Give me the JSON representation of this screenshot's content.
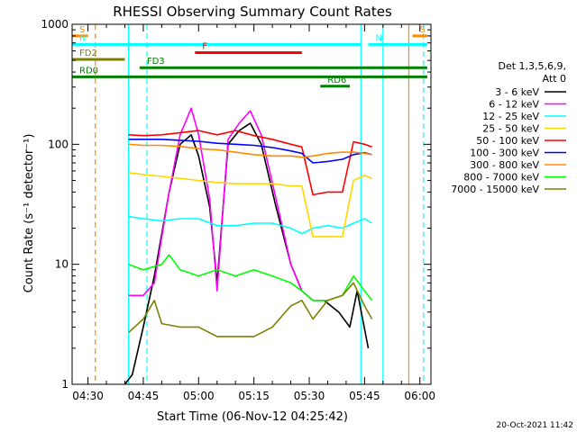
{
  "chart_data": {
    "type": "line",
    "title": "RHESSI Observing Summary Count Rates",
    "xlabel": "Start Time (06-Nov-12 04:25:42)",
    "ylabel": "Count Rate (s⁻¹ detector⁻¹)",
    "yscale": "log",
    "ylim": [
      1,
      1000
    ],
    "xlim": [
      "04:25:42",
      "06:03:00"
    ],
    "x_ticks": [
      "04:30",
      "04:45",
      "05:00",
      "05:15",
      "05:30",
      "05:45",
      "06:00"
    ],
    "y_ticks": [
      "1",
      "10",
      "100",
      "1000"
    ],
    "legend_header": [
      "Det 1,3,5,6,9,",
      "Att 0"
    ],
    "legend_position": "right",
    "series": [
      {
        "name": "3 - 6 keV",
        "color": "#000000",
        "points": [
          [
            "04:40",
            1
          ],
          [
            "04:42",
            1.2
          ],
          [
            "04:45",
            3
          ],
          [
            "04:48",
            8
          ],
          [
            "04:52",
            40
          ],
          [
            "04:55",
            100
          ],
          [
            "04:58",
            120
          ],
          [
            "05:00",
            80
          ],
          [
            "05:03",
            30
          ],
          [
            "05:05",
            7
          ],
          [
            "05:08",
            100
          ],
          [
            "05:11",
            130
          ],
          [
            "05:14",
            150
          ],
          [
            "05:17",
            100
          ],
          [
            "05:21",
            30
          ],
          [
            "05:25",
            10
          ],
          [
            "05:28",
            6
          ],
          [
            "05:31",
            5
          ],
          [
            "05:34",
            5
          ],
          [
            "05:38",
            4
          ],
          [
            "05:41",
            3
          ],
          [
            "05:43",
            6
          ],
          [
            "05:46",
            2
          ]
        ]
      },
      {
        "name": "6 - 12 keV",
        "color": "#ff00ff",
        "points": [
          [
            "04:41",
            5.5
          ],
          [
            "04:45",
            5.5
          ],
          [
            "04:48",
            7
          ],
          [
            "04:52",
            40
          ],
          [
            "04:55",
            120
          ],
          [
            "04:58",
            200
          ],
          [
            "05:00",
            120
          ],
          [
            "05:03",
            35
          ],
          [
            "05:05",
            6
          ],
          [
            "05:08",
            110
          ],
          [
            "05:11",
            150
          ],
          [
            "05:14",
            190
          ],
          [
            "05:17",
            120
          ],
          [
            "05:21",
            35
          ],
          [
            "05:25",
            10
          ],
          [
            "05:28",
            6
          ]
        ]
      },
      {
        "name": "12 - 25 keV",
        "color": "#00ffff",
        "points": [
          [
            "04:41",
            25
          ],
          [
            "04:45",
            24
          ],
          [
            "04:50",
            23
          ],
          [
            "04:55",
            24
          ],
          [
            "05:00",
            24
          ],
          [
            "05:05",
            21
          ],
          [
            "05:10",
            21
          ],
          [
            "05:15",
            22
          ],
          [
            "05:20",
            22
          ],
          [
            "05:25",
            20
          ],
          [
            "05:28",
            18
          ],
          [
            "05:31",
            20
          ],
          [
            "05:35",
            21
          ],
          [
            "05:39",
            20
          ],
          [
            "05:42",
            22
          ],
          [
            "05:45",
            24
          ],
          [
            "05:47",
            22
          ]
        ]
      },
      {
        "name": "25 - 50 keV",
        "color": "#ffd700",
        "points": [
          [
            "04:41",
            58
          ],
          [
            "04:45",
            56
          ],
          [
            "04:50",
            54
          ],
          [
            "04:55",
            52
          ],
          [
            "05:00",
            50
          ],
          [
            "05:05",
            48
          ],
          [
            "05:10",
            47
          ],
          [
            "05:15",
            47
          ],
          [
            "05:20",
            47
          ],
          [
            "05:25",
            45
          ],
          [
            "05:28",
            45
          ],
          [
            "05:31",
            17
          ],
          [
            "05:35",
            17
          ],
          [
            "05:39",
            17
          ],
          [
            "05:42",
            50
          ],
          [
            "05:45",
            55
          ],
          [
            "05:47",
            52
          ]
        ]
      },
      {
        "name": "50 - 100 keV",
        "color": "#ff0000",
        "points": [
          [
            "04:41",
            120
          ],
          [
            "04:45",
            118
          ],
          [
            "04:50",
            120
          ],
          [
            "04:55",
            125
          ],
          [
            "05:00",
            130
          ],
          [
            "05:05",
            120
          ],
          [
            "05:10",
            130
          ],
          [
            "05:15",
            118
          ],
          [
            "05:20",
            110
          ],
          [
            "05:25",
            100
          ],
          [
            "05:28",
            95
          ],
          [
            "05:31",
            38
          ],
          [
            "05:35",
            40
          ],
          [
            "05:39",
            40
          ],
          [
            "05:42",
            105
          ],
          [
            "05:45",
            100
          ],
          [
            "05:47",
            95
          ]
        ]
      },
      {
        "name": "100 - 300 keV",
        "color": "#0000ff",
        "points": [
          [
            "04:41",
            110
          ],
          [
            "04:45",
            110
          ],
          [
            "04:50",
            110
          ],
          [
            "04:55",
            108
          ],
          [
            "05:00",
            106
          ],
          [
            "05:05",
            102
          ],
          [
            "05:10",
            100
          ],
          [
            "05:15",
            98
          ],
          [
            "05:20",
            94
          ],
          [
            "05:25",
            88
          ],
          [
            "05:28",
            84
          ],
          [
            "05:31",
            70
          ],
          [
            "05:35",
            72
          ],
          [
            "05:39",
            75
          ],
          [
            "05:42",
            82
          ],
          [
            "05:45",
            85
          ],
          [
            "05:47",
            82
          ]
        ]
      },
      {
        "name": "300 - 800 keV",
        "color": "#ff8c00",
        "points": [
          [
            "04:41",
            100
          ],
          [
            "04:45",
            98
          ],
          [
            "04:50",
            98
          ],
          [
            "04:55",
            96
          ],
          [
            "05:00",
            92
          ],
          [
            "05:05",
            90
          ],
          [
            "05:10",
            86
          ],
          [
            "05:15",
            82
          ],
          [
            "05:20",
            80
          ],
          [
            "05:25",
            80
          ],
          [
            "05:28",
            78
          ],
          [
            "05:31",
            80
          ],
          [
            "05:35",
            84
          ],
          [
            "05:39",
            86
          ],
          [
            "05:42",
            86
          ],
          [
            "05:45",
            84
          ],
          [
            "05:47",
            82
          ]
        ]
      },
      {
        "name": "800 - 7000 keV",
        "color": "#00ff00",
        "points": [
          [
            "04:41",
            10
          ],
          [
            "04:45",
            9
          ],
          [
            "04:50",
            10
          ],
          [
            "04:52",
            12
          ],
          [
            "04:55",
            9
          ],
          [
            "05:00",
            8
          ],
          [
            "05:05",
            9
          ],
          [
            "05:10",
            8
          ],
          [
            "05:15",
            9
          ],
          [
            "05:20",
            8
          ],
          [
            "05:25",
            7
          ],
          [
            "05:28",
            6
          ],
          [
            "05:31",
            5
          ],
          [
            "05:35",
            5
          ],
          [
            "05:39",
            5.5
          ],
          [
            "05:42",
            8
          ],
          [
            "05:45",
            6
          ],
          [
            "05:47",
            5
          ]
        ]
      },
      {
        "name": "7000 - 15000 keV",
        "color": "#808000",
        "points": [
          [
            "04:41",
            2.7
          ],
          [
            "04:45",
            3.5
          ],
          [
            "04:48",
            5
          ],
          [
            "04:50",
            3.2
          ],
          [
            "04:55",
            3
          ],
          [
            "05:00",
            3
          ],
          [
            "05:05",
            2.5
          ],
          [
            "05:10",
            2.5
          ],
          [
            "05:15",
            2.5
          ],
          [
            "05:20",
            3
          ],
          [
            "05:25",
            4.5
          ],
          [
            "05:28",
            5
          ],
          [
            "05:31",
            3.5
          ],
          [
            "05:35",
            5
          ],
          [
            "05:39",
            5.5
          ],
          [
            "05:42",
            7
          ],
          [
            "05:45",
            4.5
          ],
          [
            "05:47",
            3.5
          ]
        ]
      }
    ],
    "intervals": [
      {
        "label": "S",
        "color": "#ff8c00",
        "start": "04:25:42",
        "end": "04:30",
        "y": 800
      },
      {
        "label": "S",
        "color": "#ff8c00",
        "start": "05:58",
        "end": "06:02",
        "y": 800
      },
      {
        "label": "N",
        "color": "#00ffff",
        "start": "04:25:42",
        "end": "05:44",
        "y": 680
      },
      {
        "label": "N",
        "color": "#00ffff",
        "start": "05:46",
        "end": "06:02",
        "y": 680
      },
      {
        "label": "F",
        "color": "#ff0000",
        "start": "04:59",
        "end": "05:28",
        "y": 580
      },
      {
        "label": "FD2",
        "color": "#808000",
        "start": "04:25:42",
        "end": "04:40",
        "y": 510
      },
      {
        "label": "FD3",
        "color": "#008000",
        "start": "04:44",
        "end": "06:02",
        "y": 435
      },
      {
        "label": "RD0",
        "color": "#008000",
        "start": "04:25:42",
        "end": "06:02",
        "y": 365
      },
      {
        "label": "RD6",
        "color": "#008000",
        "start": "05:33",
        "end": "05:41",
        "y": 305
      }
    ],
    "vertical_markers": [
      {
        "time": "04:32",
        "color": "#ff8c00",
        "style": "dashed"
      },
      {
        "time": "04:41",
        "color": "#00ffff",
        "style": "solid"
      },
      {
        "time": "04:46",
        "color": "#00ffff",
        "style": "dashed"
      },
      {
        "time": "05:44",
        "color": "#00ffff",
        "style": "solid"
      },
      {
        "time": "05:50",
        "color": "#00ffff",
        "style": "solid"
      },
      {
        "time": "05:57",
        "color": "#ff8c00",
        "style": "solid"
      },
      {
        "time": "06:01",
        "color": "#00ffff",
        "style": "dashed"
      }
    ]
  },
  "footer": {
    "timestamp": "20-Oct-2021 11:42"
  }
}
